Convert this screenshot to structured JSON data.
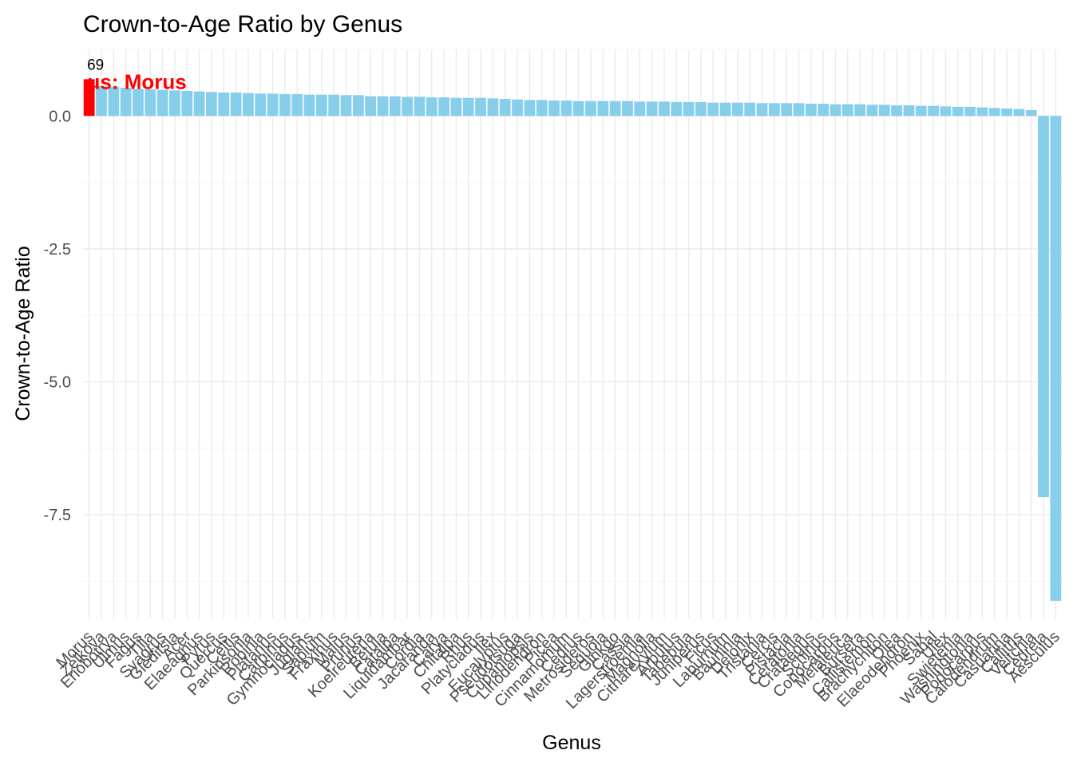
{
  "chart_data": {
    "type": "bar",
    "title": "Crown-to-Age Ratio by Genus",
    "xlabel": "Genus",
    "ylabel": "Crown-to-Age Ratio",
    "ylim": [
      -9.45,
      1.25
    ],
    "yticks": [
      0.0,
      -2.5,
      -5.0,
      -7.5
    ],
    "ytick_labels": [
      "0.0",
      "-2.5",
      "-5.0",
      "-7.5"
    ],
    "grid": true,
    "highlight_index": 0,
    "annotation": {
      "value_text": "69",
      "label_text": "us: Morus"
    },
    "colors": {
      "bar": "#87CEEB",
      "highlight": "#FF0000",
      "grid_major": "#EBEBEB",
      "grid_minor": "#F4F4F4",
      "annotation_label": "#FF0000"
    },
    "categories": [
      "Morus",
      "Zelkova",
      "Eriobotrya",
      "Ulmus",
      "Fagus",
      "Tilia",
      "Syagrus",
      "Gleditsia",
      "Acer",
      "Elaeagnus",
      "Pyrus",
      "Quercus",
      "Celtis",
      "Parkinsonia",
      "Robinia",
      "Platanus",
      "Carpinus",
      "Gymnocladus",
      "Juglans",
      "Sapium",
      "Fraxinus",
      "Malus",
      "Prunus",
      "Koelreuteria",
      "Betula",
      "Catalpa",
      "Liquidambar",
      "Cordia",
      "Jacaranda",
      "Carya",
      "Chitalpa",
      "Rhus",
      "Platycladus",
      "Ilex",
      "Eucalyptus",
      "Pseudotsuga",
      "Cupaniopsis",
      "Liriodendron",
      "Picea",
      "Cinnamomum",
      "Cedrus",
      "Metrosideros",
      "Sequoia",
      "Ginkgo",
      "Cassia",
      "Lagerstroemia",
      "Magnolia",
      "Citharexylum",
      "Arbutus",
      "Tabebuia",
      "Juniperus",
      "Ficus",
      "Laburnum",
      "Bauhinia",
      "Delonix",
      "Tristania",
      "Cercis",
      "Pistacia",
      "Ceratonia",
      "Crataegus",
      "Schinus",
      "Conocarpus",
      "Melaleuca",
      "Bursera",
      "Callistemon",
      "Brachychiton",
      "Olea",
      "Elaeodendron",
      "Phoenix",
      "Sabal",
      "Ulex",
      "Swietenia",
      "Washingtonia",
      "Podocarpus",
      "Calodendrum",
      "Casuarina",
      "Callitris",
      "Veitchia",
      "Cedrela",
      "Aesculus"
    ],
    "values": [
      0.69,
      0.57,
      0.55,
      0.53,
      0.51,
      0.5,
      0.49,
      0.48,
      0.47,
      0.46,
      0.45,
      0.44,
      0.44,
      0.43,
      0.42,
      0.42,
      0.41,
      0.41,
      0.4,
      0.4,
      0.4,
      0.39,
      0.39,
      0.37,
      0.37,
      0.37,
      0.36,
      0.36,
      0.35,
      0.35,
      0.34,
      0.34,
      0.34,
      0.33,
      0.32,
      0.31,
      0.3,
      0.3,
      0.29,
      0.29,
      0.28,
      0.28,
      0.28,
      0.28,
      0.28,
      0.27,
      0.27,
      0.27,
      0.26,
      0.26,
      0.26,
      0.25,
      0.25,
      0.25,
      0.25,
      0.24,
      0.24,
      0.24,
      0.24,
      0.23,
      0.23,
      0.22,
      0.22,
      0.22,
      0.21,
      0.21,
      0.2,
      0.2,
      0.19,
      0.19,
      0.18,
      0.17,
      0.17,
      0.16,
      0.15,
      0.14,
      0.13,
      0.11,
      -7.17,
      -9.12
    ]
  }
}
